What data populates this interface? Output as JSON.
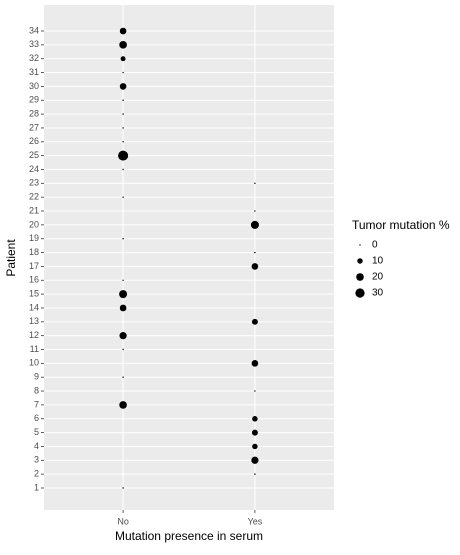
{
  "chart_data": {
    "type": "scatter",
    "x_label": "Mutation presence in serum",
    "y_label": "Patient",
    "legend_title": "Tumor mutation %",
    "categories": [
      "No",
      "Yes"
    ],
    "x": [
      "No",
      "Yes",
      "Yes",
      "Yes",
      "Yes",
      "Yes",
      "No",
      "Yes",
      "No",
      "Yes",
      "No",
      "No",
      "Yes",
      "No",
      "No",
      "No",
      "Yes",
      "Yes",
      "No",
      "Yes",
      "Yes",
      "No",
      "Yes",
      "No",
      "No",
      "No",
      "No",
      "No",
      "No",
      "No",
      "No",
      "No",
      "No",
      "No"
    ],
    "y": [
      1,
      2,
      3,
      4,
      5,
      6,
      7,
      8,
      9,
      10,
      11,
      12,
      13,
      14,
      15,
      16,
      17,
      18,
      19,
      20,
      21,
      22,
      23,
      24,
      25,
      26,
      27,
      28,
      29,
      30,
      31,
      32,
      33,
      34
    ],
    "values": [
      0,
      0,
      18,
      10,
      12,
      10,
      20,
      0,
      0,
      15,
      0,
      18,
      12,
      15,
      22,
      0,
      15,
      0,
      0,
      22,
      0,
      0,
      0,
      0,
      35,
      0,
      0,
      0,
      0,
      15,
      0,
      8,
      20,
      15
    ],
    "ylim": [
      0.4,
      34.6
    ],
    "yticks": [
      1,
      2,
      3,
      4,
      5,
      6,
      7,
      8,
      9,
      10,
      11,
      12,
      13,
      14,
      15,
      16,
      17,
      18,
      19,
      20,
      21,
      22,
      23,
      24,
      25,
      26,
      27,
      28,
      29,
      30,
      31,
      32,
      33,
      34
    ],
    "size_legend": [
      0,
      10,
      20,
      30
    ],
    "color": "#000000",
    "grid": true
  }
}
